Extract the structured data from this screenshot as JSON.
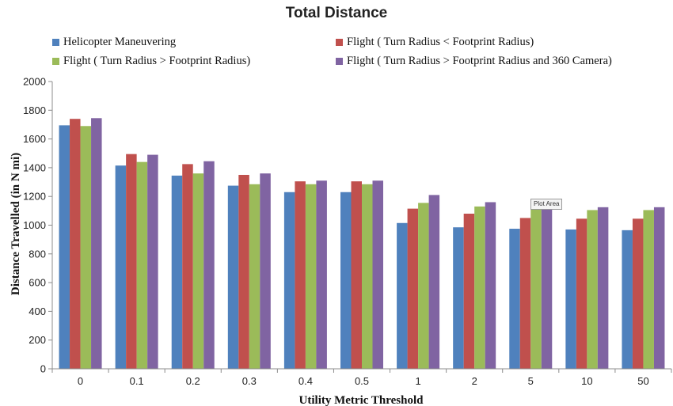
{
  "chart_data": {
    "type": "bar",
    "title": "Total Distance",
    "xlabel": "Utility Metric Threshold",
    "ylabel": "Distance Travelled (in N mi)",
    "ylim": [
      0,
      2000
    ],
    "yticks": [
      0,
      200,
      400,
      600,
      800,
      1000,
      1200,
      1400,
      1600,
      1800,
      2000
    ],
    "grid": false,
    "legend_position": "top",
    "categories": [
      "0",
      "0.1",
      "0.2",
      "0.3",
      "0.4",
      "0.5",
      "1",
      "2",
      "5",
      "10",
      "50"
    ],
    "series": [
      {
        "name": "Helicopter Maneuvering",
        "color": "#4F81BD",
        "values": [
          1695,
          1415,
          1345,
          1275,
          1230,
          1230,
          1015,
          985,
          975,
          970,
          965
        ]
      },
      {
        "name": "Flight ( Turn Radius < Footprint Radius)",
        "color": "#C0504D",
        "values": [
          1740,
          1495,
          1425,
          1350,
          1305,
          1305,
          1115,
          1080,
          1050,
          1045,
          1045
        ]
      },
      {
        "name": "Flight ( Turn Radius > Footprint Radius)",
        "color": "#9BBB59",
        "values": [
          1690,
          1440,
          1360,
          1285,
          1285,
          1285,
          1155,
          1130,
          1110,
          1105,
          1105
        ]
      },
      {
        "name": "Flight ( Turn Radius > Footprint Radius and 360 Camera)",
        "color": "#8064A2",
        "values": [
          1745,
          1490,
          1445,
          1360,
          1310,
          1310,
          1210,
          1160,
          1140,
          1125,
          1125
        ]
      }
    ]
  },
  "tooltip": {
    "label": "Plot Area"
  }
}
